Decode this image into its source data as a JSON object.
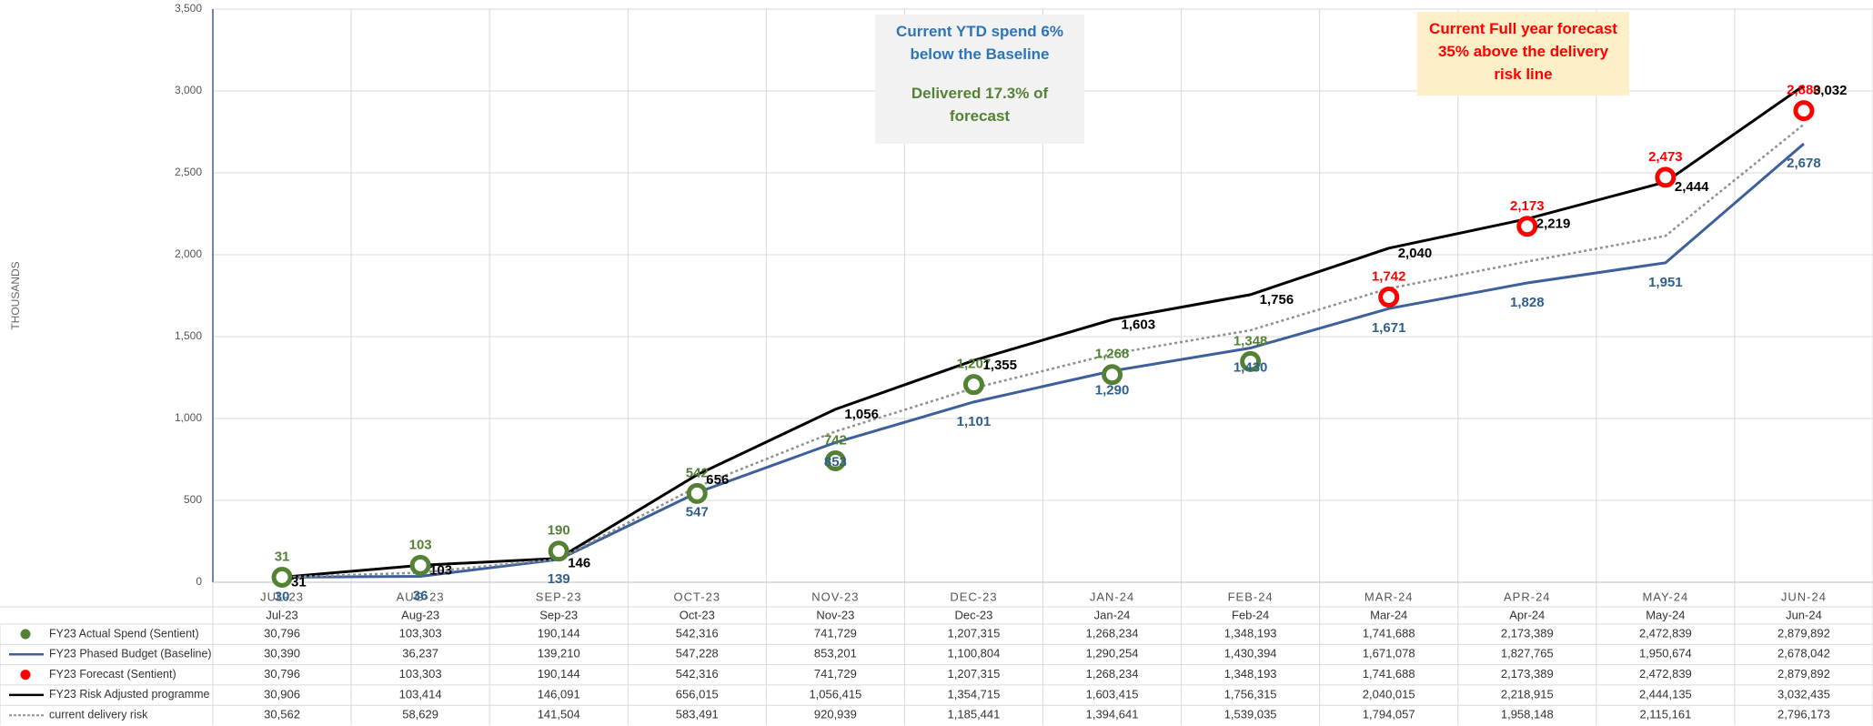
{
  "chart_data": {
    "type": "line",
    "y_label": "THOUSANDS",
    "categories": [
      "JUL-23",
      "AUG-23",
      "SEP-23",
      "OCT-23",
      "NOV-23",
      "DEC-23",
      "JAN-24",
      "FEB-24",
      "MAR-24",
      "APR-24",
      "MAY-24",
      "JUN-24"
    ],
    "table_header": [
      "Jul-23",
      "Aug-23",
      "Sep-23",
      "Oct-23",
      "Nov-23",
      "Dec-23",
      "Jan-24",
      "Feb-24",
      "Mar-24",
      "Apr-24",
      "May-24",
      "Jun-24"
    ],
    "ylim": [
      0,
      3500
    ],
    "yticks": [
      0,
      500,
      {
        "value": 1000,
        "label": "1,000"
      },
      {
        "value": 1500,
        "label": "1,500"
      },
      {
        "value": 2000,
        "label": "2,000"
      },
      {
        "value": 2500,
        "label": "2,500"
      },
      {
        "value": 3000,
        "label": "3,000"
      },
      {
        "value": 3500,
        "label": "3,500"
      }
    ],
    "grid": true,
    "annotations": [
      {
        "lines": [
          {
            "text": "Current YTD spend 6% below the Baseline",
            "color": "#2e75b6"
          },
          {
            "text": "Delivered 17.3% of forecast",
            "color": "#548235"
          }
        ],
        "background": "#f2f2f2"
      },
      {
        "lines": [
          {
            "text": "Current Full year forecast 35% above the delivery risk line",
            "color": "#ff0000"
          }
        ],
        "background": "#fdf0c8"
      }
    ],
    "series": [
      {
        "name": "FY23 Actual Spend (Sentient)",
        "style": "marker",
        "color": "#548235",
        "label_position": "above",
        "values": [
          30.796,
          103.303,
          190.144,
          542.316,
          741.729,
          1207.315,
          1268.234,
          1348.193,
          1741.688,
          2173.389,
          2472.839,
          2879.892
        ],
        "value_labels": [
          "31",
          "103",
          "190",
          "542",
          "742",
          "1,207",
          "1,268",
          "1,348",
          null,
          null,
          null,
          null
        ],
        "table_labels": [
          "30,796",
          "103,303",
          "190,144",
          "542,316",
          "741,729",
          "1,207,315",
          "1,268,234",
          "1,348,193",
          "1,741,688",
          "2,173,389",
          "2,472,839",
          "2,879,892"
        ]
      },
      {
        "name": "FY23 Phased Budget (Baseline)",
        "style": "line",
        "color": "#3d5f9c",
        "label_position": "below",
        "values": [
          30.39,
          36.237,
          139.21,
          547.228,
          853.201,
          1100.804,
          1290.254,
          1430.394,
          1671.078,
          1827.765,
          1950.674,
          2678.042
        ],
        "value_labels": [
          "30",
          "36",
          "139",
          "547",
          "853",
          "1,101",
          "1,290",
          "1,430",
          "1,671",
          "1,828",
          "1,951",
          "2,678"
        ],
        "table_labels": [
          "30,390",
          "36,237",
          "139,210",
          "547,228",
          "853,201",
          "1,100,804",
          "1,290,254",
          "1,430,394",
          "1,671,078",
          "1,827,765",
          "1,950,674",
          "2,678,042"
        ]
      },
      {
        "name": "FY23 Forecast (Sentient)",
        "style": "marker",
        "color": "#ff0000",
        "label_position": "above",
        "values": [
          30.796,
          103.303,
          190.144,
          542.316,
          741.729,
          1207.315,
          1268.234,
          1348.193,
          1741.688,
          2173.389,
          2472.839,
          2879.892
        ],
        "value_labels": [
          null,
          null,
          null,
          null,
          null,
          null,
          null,
          null,
          "1,742",
          "2,173",
          "2,473",
          "2,880"
        ],
        "table_labels": [
          "30,796",
          "103,303",
          "190,144",
          "542,316",
          "741,729",
          "1,207,315",
          "1,268,234",
          "1,348,193",
          "1,741,688",
          "2,173,389",
          "2,472,839",
          "2,879,892"
        ]
      },
      {
        "name": "FY23 Risk Adjusted programme",
        "style": "line",
        "color": "#000000",
        "label_position": "right",
        "values": [
          30.906,
          103.414,
          146.091,
          656.015,
          1056.415,
          1354.715,
          1603.415,
          1756.315,
          2040.015,
          2218.915,
          2444.135,
          3032.435
        ],
        "value_labels": [
          "31",
          "103",
          "146",
          "656",
          "1,056",
          "1,355",
          "1,603",
          "1,756",
          "2,040",
          "2,219",
          "2,444",
          "3,032"
        ],
        "table_labels": [
          "30,906",
          "103,414",
          "146,091",
          "656,015",
          "1,056,415",
          "1,354,715",
          "1,603,415",
          "1,756,315",
          "2,040,015",
          "2,218,915",
          "2,444,135",
          "3,032,435"
        ]
      },
      {
        "name": "current delivery risk",
        "style": "dotted",
        "color": "#909090",
        "values": [
          30.562,
          58.629,
          141.504,
          583.491,
          920.939,
          1185.441,
          1394.641,
          1539.035,
          1794.057,
          1958.148,
          2115.161,
          2796.173
        ],
        "table_labels": [
          "30,562",
          "58,629",
          "141,504",
          "583,491",
          "920,939",
          "1,185,441",
          "1,394,641",
          "1,539,035",
          "1,794,057",
          "1,958,148",
          "2,115,161",
          "2,796,173"
        ]
      }
    ]
  }
}
